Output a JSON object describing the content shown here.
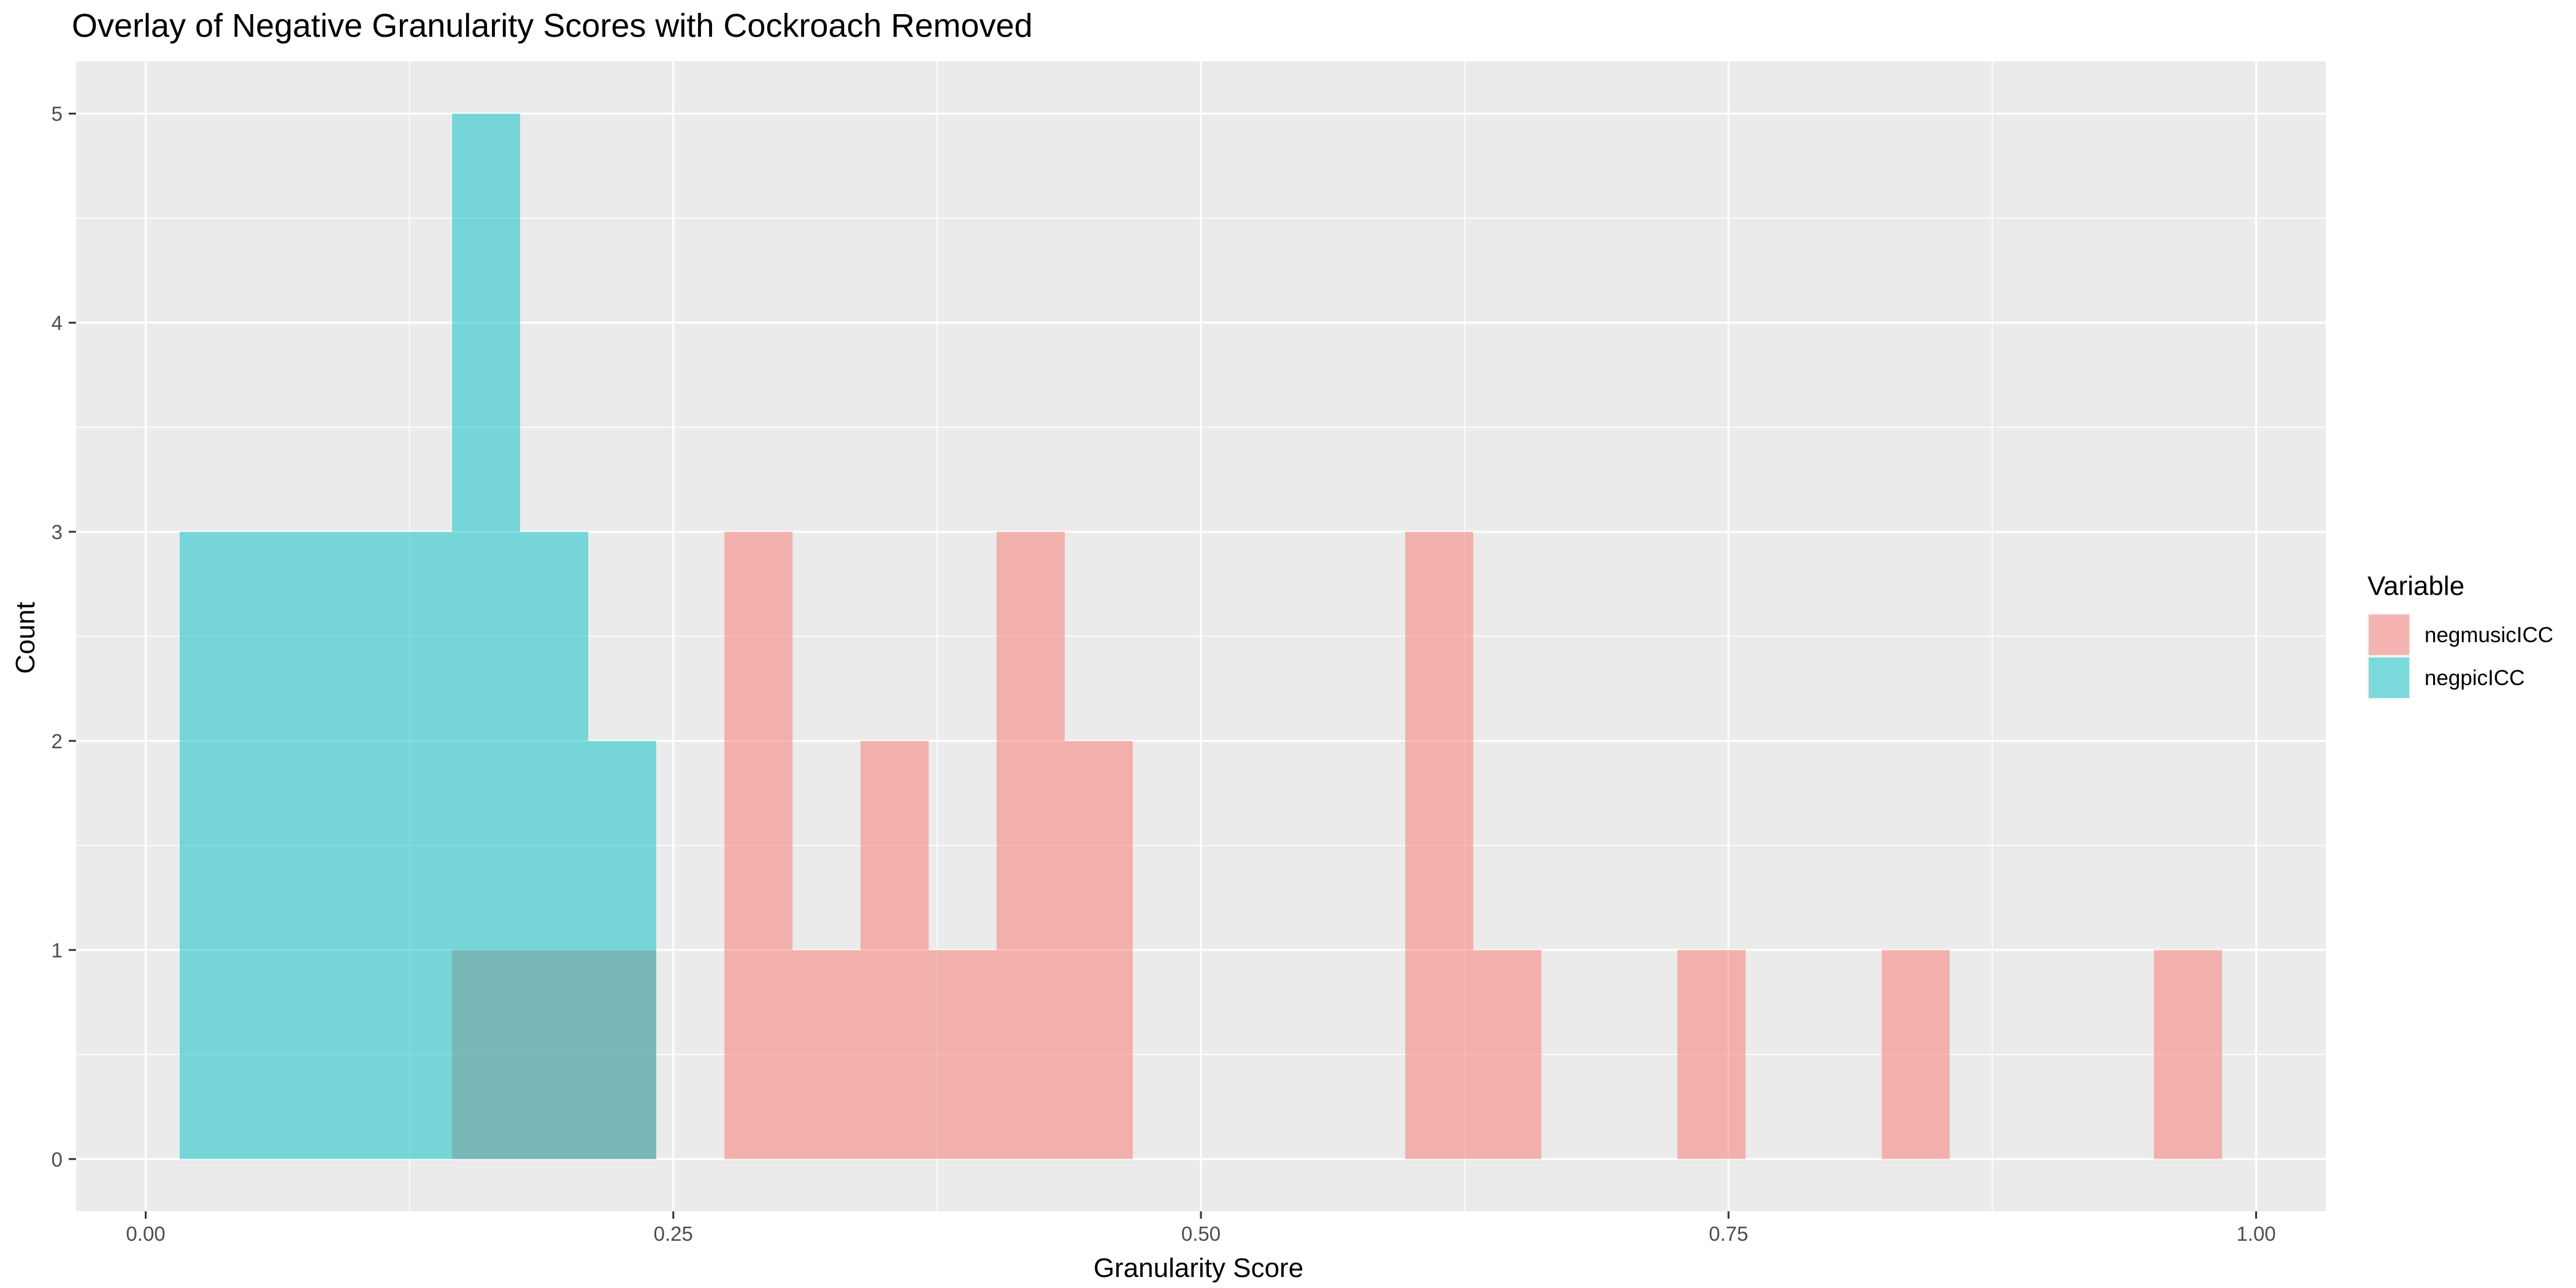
{
  "chart_data": {
    "type": "histogram",
    "title": "Overlay of Negative Granularity Scores with Cockroach Removed",
    "xlabel": "Granularity Score",
    "ylabel": "Count",
    "xlim": [
      -0.033,
      1.033
    ],
    "ylim": [
      -0.25,
      5.25
    ],
    "x_ticks": [
      0.0,
      0.25,
      0.5,
      0.75,
      1.0
    ],
    "x_tick_labels": [
      "0.00",
      "0.25",
      "0.50",
      "0.75",
      "1.00"
    ],
    "y_ticks": [
      0,
      1,
      2,
      3,
      4,
      5
    ],
    "y_tick_labels": [
      "0",
      "1",
      "2",
      "3",
      "4",
      "5"
    ],
    "grid": true,
    "legend": {
      "title": "Variable",
      "position": "right"
    },
    "bin_width": 0.0323,
    "series": [
      {
        "name": "negmusicICC",
        "color": "#F8766D",
        "bins": [
          {
            "x0": 0.1452,
            "x1": 0.1774,
            "count": 1
          },
          {
            "x0": 0.1774,
            "x1": 0.2097,
            "count": 1
          },
          {
            "x0": 0.2097,
            "x1": 0.2419,
            "count": 1
          },
          {
            "x0": 0.2742,
            "x1": 0.3065,
            "count": 3
          },
          {
            "x0": 0.3065,
            "x1": 0.3387,
            "count": 1
          },
          {
            "x0": 0.3387,
            "x1": 0.371,
            "count": 2
          },
          {
            "x0": 0.371,
            "x1": 0.4032,
            "count": 1
          },
          {
            "x0": 0.4032,
            "x1": 0.4355,
            "count": 3
          },
          {
            "x0": 0.4355,
            "x1": 0.4677,
            "count": 2
          },
          {
            "x0": 0.5968,
            "x1": 0.629,
            "count": 3
          },
          {
            "x0": 0.629,
            "x1": 0.6613,
            "count": 1
          },
          {
            "x0": 0.7258,
            "x1": 0.7581,
            "count": 1
          },
          {
            "x0": 0.8226,
            "x1": 0.8548,
            "count": 1
          },
          {
            "x0": 0.9516,
            "x1": 0.9839,
            "count": 1
          }
        ]
      },
      {
        "name": "negpicICC",
        "color": "#00BFC4",
        "bins": [
          {
            "x0": 0.0161,
            "x1": 0.0484,
            "count": 3
          },
          {
            "x0": 0.0484,
            "x1": 0.0806,
            "count": 3
          },
          {
            "x0": 0.0806,
            "x1": 0.1129,
            "count": 3
          },
          {
            "x0": 0.1129,
            "x1": 0.1452,
            "count": 3
          },
          {
            "x0": 0.1452,
            "x1": 0.1774,
            "count": 5
          },
          {
            "x0": 0.1774,
            "x1": 0.2097,
            "count": 3
          },
          {
            "x0": 0.2097,
            "x1": 0.2419,
            "count": 2
          }
        ]
      }
    ],
    "panel_background": "#EBEBEB",
    "grid_color": "#FFFFFF",
    "fill_opacity": 0.5
  }
}
